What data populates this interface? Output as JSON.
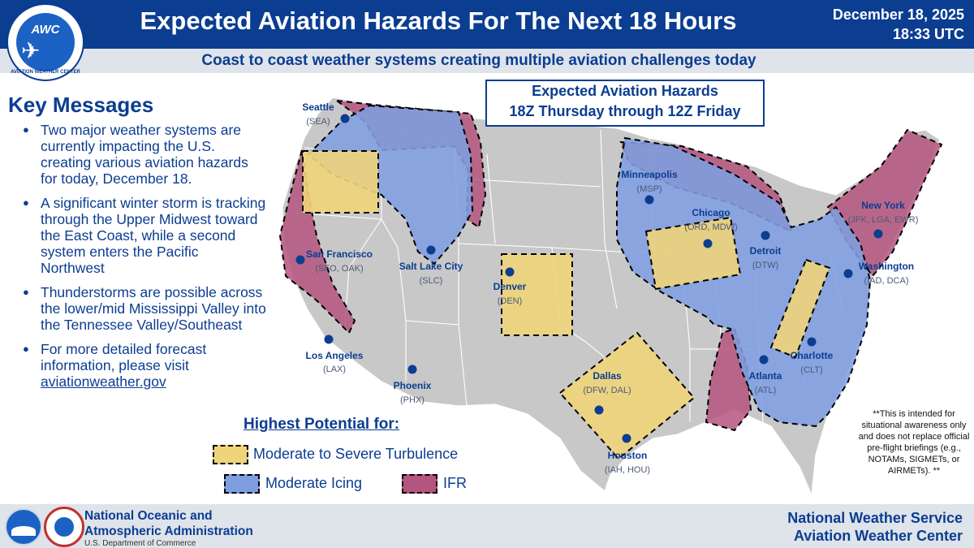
{
  "logo": {
    "text": "AWC",
    "ring_text": "AVIATION WEATHER CENTER"
  },
  "header": {
    "title": "Expected Aviation Hazards For The Next 18 Hours",
    "date": "December 18, 2025",
    "time": "18:33 UTC",
    "subtitle": "Coast to coast weather systems creating multiple aviation challenges today"
  },
  "key_messages": {
    "title": "Key Messages",
    "items": [
      "Two major weather systems are currently impacting the U.S. creating various aviation hazards for today, December 18.",
      "A significant winter storm is tracking through the Upper Midwest toward the East Coast, while a second system enters the Pacific Northwest",
      "Thunderstorms are possible across the lower/mid Mississippi Valley into the Tennessee Valley/Southeast"
    ],
    "last_item_prefix": "For more detailed forecast information, please visit",
    "last_item_link": "aviationweather.gov"
  },
  "hazard_box": {
    "line1": "Expected Aviation Hazards",
    "line2": "18Z Thursday through 12Z Friday"
  },
  "colors": {
    "turbulence": "#f0d47a",
    "icing": "#7f9ee0",
    "ifr": "#b4557f",
    "land": "#c8c8c8",
    "brand": "#0b3d91"
  },
  "cities": [
    {
      "name": "Seattle",
      "code": "(SEA)"
    },
    {
      "name": "San Francisco",
      "code": "(SFO, OAK)"
    },
    {
      "name": "Los Angeles",
      "code": "(LAX)"
    },
    {
      "name": "Salt Lake City",
      "code": "(SLC)"
    },
    {
      "name": "Phoenix",
      "code": "(PHX)"
    },
    {
      "name": "Denver",
      "code": "(DEN)"
    },
    {
      "name": "Dallas",
      "code": "(DFW, DAL)"
    },
    {
      "name": "Houston",
      "code": "(IAH, HOU)"
    },
    {
      "name": "Minneapolis",
      "code": "(MSP)"
    },
    {
      "name": "Chicago",
      "code": "(ORD, MDW)"
    },
    {
      "name": "Detroit",
      "code": "(DTW)"
    },
    {
      "name": "Atlanta",
      "code": "(ATL)"
    },
    {
      "name": "Charlotte",
      "code": "(CLT)"
    },
    {
      "name": "Washington",
      "code": "(IAD, DCA)"
    },
    {
      "name": "New York",
      "code": "(JFK, LGA, EWR)"
    }
  ],
  "legend": {
    "title": "Highest Potential for:",
    "turbulence": "Moderate to Severe Turbulence",
    "icing": "Moderate Icing",
    "ifr": "IFR"
  },
  "disclaimer": "**This is intended for situational awareness only and does not replace official pre-flight briefings (e.g., NOTAMs, SIGMETs, or AIRMETs). **",
  "footer": {
    "noaa_line1": "National Oceanic and",
    "noaa_line2": "Atmospheric Administration",
    "doc": "U.S. Department of Commerce",
    "nws_line1": "National Weather Service",
    "nws_line2": "Aviation Weather Center"
  }
}
